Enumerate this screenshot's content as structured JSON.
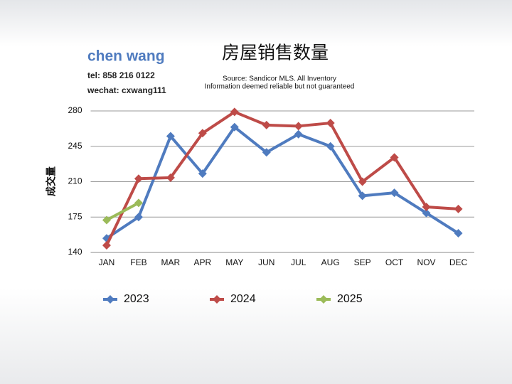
{
  "contact": {
    "name": "chen wang",
    "tel": "tel: 858 216 0122",
    "wechat": "wechat: cxwang111"
  },
  "chart_data": {
    "type": "line",
    "title": "房屋销售数量",
    "subtitle": [
      "Source: Sandicor MLS. All Inventory",
      "Information deemed reliable but not guaranteed"
    ],
    "y_label": "成交量",
    "categories": [
      "JAN",
      "FEB",
      "MAR",
      "APR",
      "MAY",
      "JUN",
      "JUL",
      "AUG",
      "SEP",
      "OCT",
      "NOV",
      "DEC"
    ],
    "series": [
      {
        "name": "2023",
        "color": "#4f7bbf",
        "values": [
          154,
          175,
          255,
          218,
          264,
          239,
          257,
          245,
          196,
          199,
          179,
          159
        ]
      },
      {
        "name": "2024",
        "color": "#be4b48",
        "values": [
          147,
          213,
          214,
          258,
          279,
          266,
          265,
          268,
          210,
          234,
          185,
          183
        ]
      },
      {
        "name": "2025",
        "color": "#9bbb59",
        "values": [
          172,
          189,
          null,
          null,
          null,
          null,
          null,
          null,
          null,
          null,
          null,
          null
        ]
      }
    ],
    "ylim": [
      140,
      280
    ],
    "yticks": [
      140,
      175,
      210,
      245,
      280
    ],
    "grid": true,
    "legend": "bottom"
  }
}
